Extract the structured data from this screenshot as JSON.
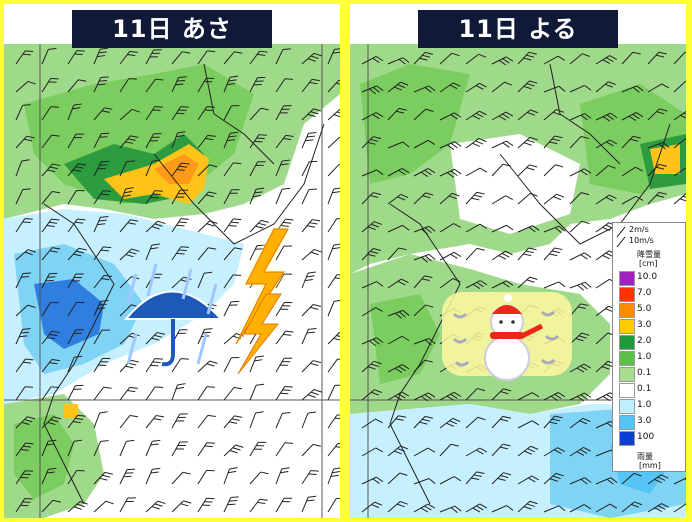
{
  "panels": [
    {
      "id": "left",
      "title": "11日 あさ",
      "weather_icon": "umbrella-rain-thunder-icon"
    },
    {
      "id": "right",
      "title": "11日 よる",
      "weather_icon": "snowman-snow-icon"
    }
  ],
  "legend": {
    "wind_scale": [
      "2m/s",
      "10m/s"
    ],
    "snow_header": "降雪量",
    "snow_unit": "[cm]",
    "rain_header": "雨量",
    "rain_unit": "[mm]",
    "snow_levels": [
      {
        "label": "10.0",
        "color": "#a020c0"
      },
      {
        "label": "7.0",
        "color": "#ff3300"
      },
      {
        "label": "5.0",
        "color": "#ff8c00"
      },
      {
        "label": "3.0",
        "color": "#ffcc00"
      },
      {
        "label": "2.0",
        "color": "#1e9a3a"
      },
      {
        "label": "1.0",
        "color": "#5cc04a"
      },
      {
        "label": "0.1",
        "color": "#a8dc8e"
      }
    ],
    "rain_levels": [
      {
        "label": "0.1",
        "color": "#ffffff"
      },
      {
        "label": "1.0",
        "color": "#bfefff"
      },
      {
        "label": "3.0",
        "color": "#55c5f5"
      },
      {
        "label": "100",
        "color": "#0a3fd0"
      }
    ]
  }
}
